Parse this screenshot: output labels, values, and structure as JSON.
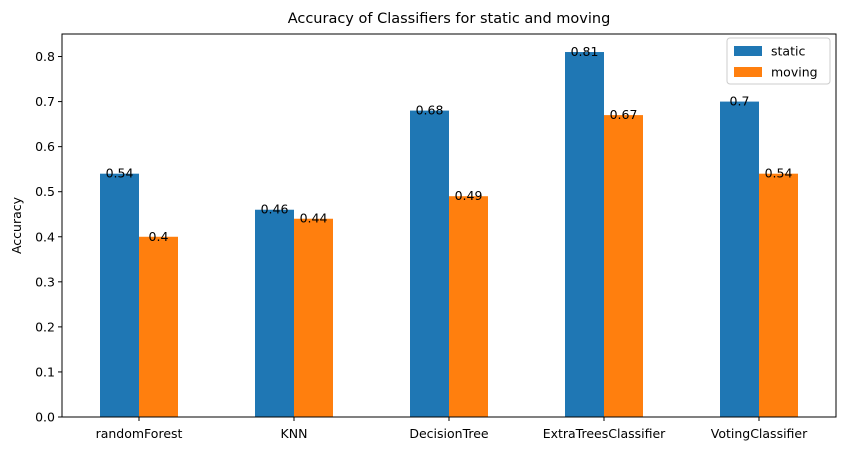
{
  "chart_data": {
    "type": "bar",
    "title": "Accuracy of Classifiers for static and moving",
    "xlabel": "",
    "ylabel": "Accuracy",
    "categories": [
      "randomForest",
      "KNN",
      "DecisionTree",
      "ExtraTreesClassifier",
      "VotingClassifier"
    ],
    "series": [
      {
        "name": "static",
        "color": "#1f77b4",
        "values": [
          0.54,
          0.46,
          0.68,
          0.81,
          0.7
        ],
        "labels": [
          "0.54",
          "0.46",
          "0.68",
          "0.81",
          "0.7"
        ]
      },
      {
        "name": "moving",
        "color": "#ff7f0e",
        "values": [
          0.4,
          0.44,
          0.49,
          0.67,
          0.54
        ],
        "labels": [
          "0.4",
          "0.44",
          "0.49",
          "0.67",
          "0.54"
        ]
      }
    ],
    "ylim": [
      0,
      0.85
    ],
    "yticks": [
      0.0,
      0.1,
      0.2,
      0.3,
      0.4,
      0.5,
      0.6,
      0.7,
      0.8
    ],
    "ytick_labels": [
      "0.0",
      "0.1",
      "0.2",
      "0.3",
      "0.4",
      "0.5",
      "0.6",
      "0.7",
      "0.8"
    ],
    "grid": false,
    "legend_position": "top-right"
  }
}
